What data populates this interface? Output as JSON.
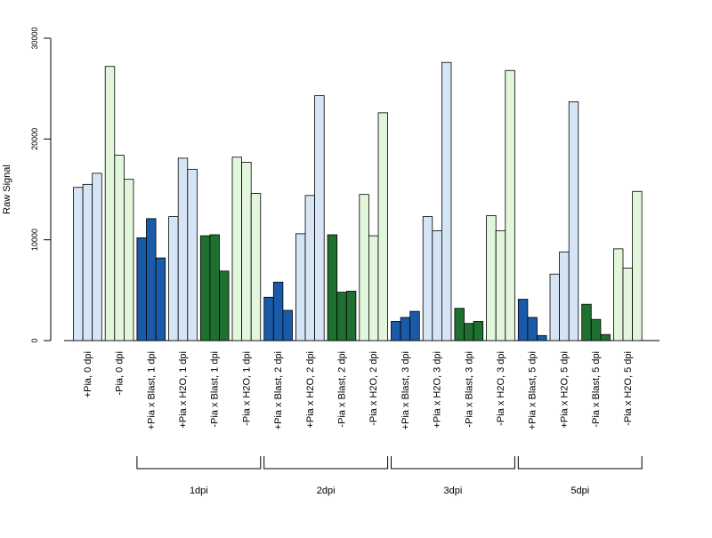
{
  "chart_data": {
    "type": "bar",
    "title": "",
    "xlabel": "",
    "ylabel": "Raw Signal",
    "ylim": [
      0,
      30000
    ],
    "yticks": [
      0,
      10000,
      20000,
      30000
    ],
    "grid": false,
    "legend": "none",
    "categories": [
      "+Pia, 0 dpi",
      "-Pia, 0 dpi",
      "+Pia x Blast, 1 dpi",
      "+Pia x H2O, 1 dpi",
      "-Pia x Blast, 1 dpi",
      "-Pia x H2O, 1 dpi",
      "+Pia x Blast, 2 dpi",
      "+Pia x H2O, 2 dpi",
      "-Pia x Blast, 2 dpi",
      "-Pia x H2O, 2 dpi",
      "+Pia x Blast, 3 dpi",
      "+Pia x H2O, 3 dpi",
      "-Pia x Blast, 3 dpi",
      "-Pia x H2O, 3 dpi",
      "+Pia x Blast, 5 dpi",
      "+Pia x H2O, 5 dpi",
      "-Pia x Blast, 5 dpi",
      "-Pia x H2O, 5 dpi"
    ],
    "replicates": [
      [
        15200,
        15500,
        16600
      ],
      [
        27200,
        18400,
        16000
      ],
      [
        10200,
        12100,
        8200
      ],
      [
        12300,
        18100,
        17000
      ],
      [
        10400,
        10500,
        6900
      ],
      [
        18200,
        17700,
        14600
      ],
      [
        4300,
        5800,
        3000
      ],
      [
        10600,
        14400,
        24300
      ],
      [
        10500,
        4800,
        4900
      ],
      [
        14500,
        10400,
        22600
      ],
      [
        1900,
        2300,
        2900
      ],
      [
        12300,
        10900,
        27600
      ],
      [
        3200,
        1700,
        1900
      ],
      [
        12400,
        10900,
        26800
      ],
      [
        4100,
        2300,
        500
      ],
      [
        6600,
        8800,
        23700
      ],
      [
        3600,
        2100,
        600
      ],
      [
        9100,
        7200,
        14800
      ]
    ],
    "colors": [
      "#d6e5f6",
      "#e2f6dc",
      "#1a5aa8",
      "#d6e5f6",
      "#1f7030",
      "#e2f6dc",
      "#1a5aa8",
      "#d6e5f6",
      "#1f7030",
      "#e2f6dc",
      "#1a5aa8",
      "#d6e5f6",
      "#1f7030",
      "#e2f6dc",
      "#1a5aa8",
      "#d6e5f6",
      "#1f7030",
      "#e2f6dc"
    ],
    "groups": [
      {
        "label": "1dpi",
        "from_category": 2,
        "to_category": 5
      },
      {
        "label": "2dpi",
        "from_category": 6,
        "to_category": 9
      },
      {
        "label": "3dpi",
        "from_category": 10,
        "to_category": 13
      },
      {
        "label": "5dpi",
        "from_category": 14,
        "to_category": 17
      }
    ]
  }
}
